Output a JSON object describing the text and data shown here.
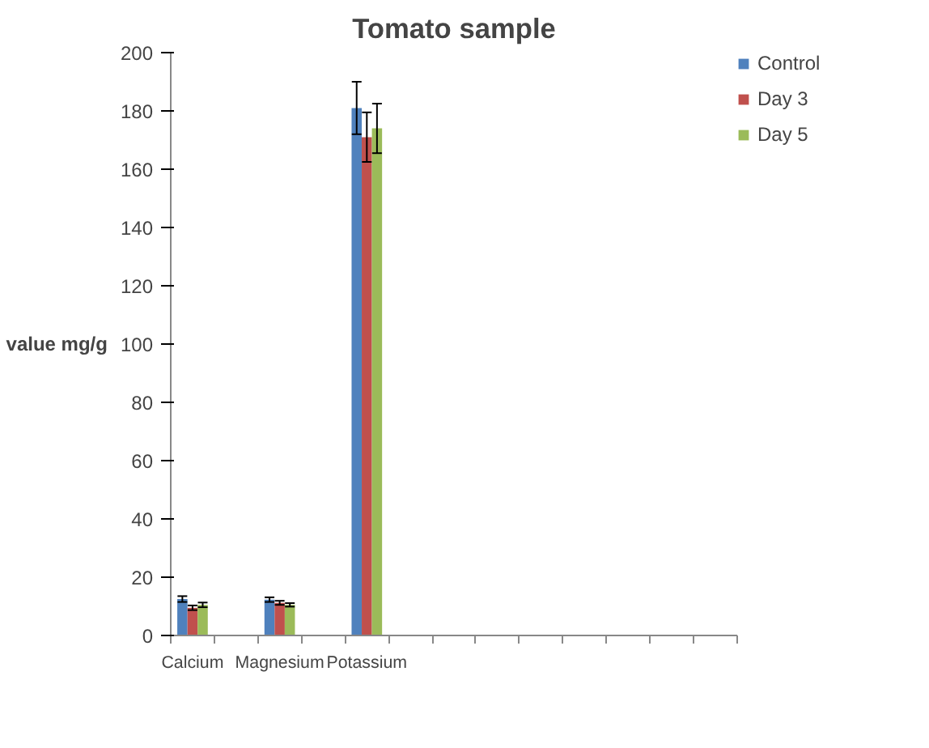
{
  "chart_data": {
    "type": "bar",
    "title": "Tomato sample",
    "ylabel": "value mg/g",
    "categories": [
      "Calcium",
      null,
      "Magnesium",
      null,
      "Potassium",
      null,
      null,
      null,
      null,
      null,
      null,
      null,
      null
    ],
    "series": [
      {
        "name": "Control",
        "color": "#4f81bd",
        "values": [
          12.5,
          null,
          12.3,
          null,
          181,
          null,
          null,
          null,
          null,
          null,
          null,
          null,
          null
        ],
        "errors": [
          1,
          null,
          0.8,
          null,
          9,
          null,
          null,
          null,
          null,
          null,
          null,
          null,
          null
        ]
      },
      {
        "name": "Day 3",
        "color": "#c0504d",
        "values": [
          9.5,
          null,
          11.2,
          null,
          171,
          null,
          null,
          null,
          null,
          null,
          null,
          null,
          null
        ],
        "errors": [
          0.8,
          null,
          0.7,
          null,
          8.5,
          null,
          null,
          null,
          null,
          null,
          null,
          null,
          null
        ]
      },
      {
        "name": "Day 5",
        "color": "#9bbb59",
        "values": [
          10.5,
          null,
          10.5,
          null,
          174,
          null,
          null,
          null,
          null,
          null,
          null,
          null,
          null
        ],
        "errors": [
          0.8,
          null,
          0.6,
          null,
          8.5,
          null,
          null,
          null,
          null,
          null,
          null,
          null,
          null
        ]
      }
    ],
    "ylim": [
      0,
      200
    ],
    "yticks": [
      0,
      20,
      40,
      60,
      80,
      100,
      120,
      140,
      160,
      180,
      200
    ],
    "grid": false,
    "legend": "right"
  }
}
